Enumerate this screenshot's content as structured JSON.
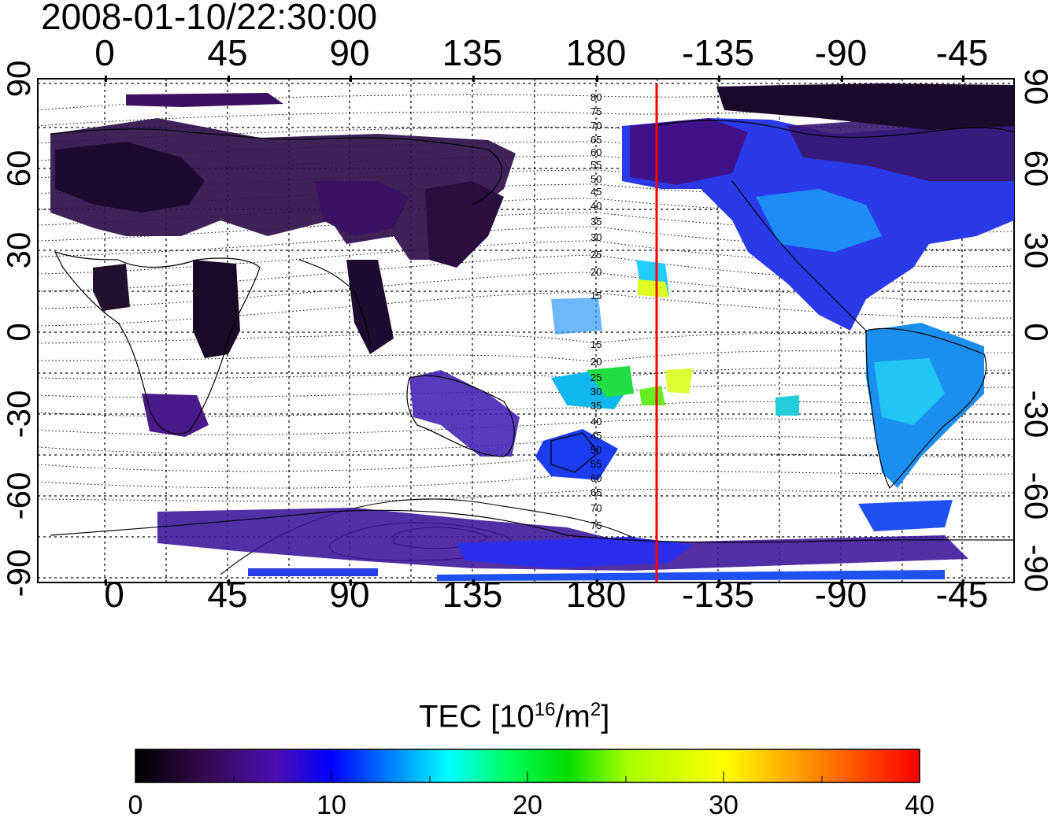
{
  "map": {
    "timestamp": "2008-01-10/22:30:00",
    "top_axis_ticks": [
      "0",
      "45",
      "90",
      "135",
      "180",
      "-135",
      "-90",
      "-45"
    ],
    "bottom_axis_ticks": [
      "0",
      "45",
      "90",
      "135",
      "180",
      "-135",
      "-90",
      "-45"
    ],
    "left_axis_ticks": [
      "90",
      "60",
      "30",
      "0",
      "-30",
      "-60",
      "-90"
    ],
    "right_axis_ticks": [
      "90",
      "60",
      "30",
      "0",
      "-30",
      "-60",
      "-90"
    ],
    "contour_labels_north": [
      "80",
      "75",
      "70",
      "65",
      "60",
      "55",
      "50",
      "45",
      "40",
      "35",
      "30",
      "25",
      "20",
      "15"
    ],
    "contour_labels_south": [
      "15",
      "20",
      "25",
      "30",
      "35",
      "40",
      "45",
      "50",
      "55",
      "60",
      "65",
      "70",
      "75"
    ],
    "marker_line_color": "#ff0000",
    "colorbar": {
      "title": "TEC  [10",
      "title_sup": "16",
      "title_mid": "/m",
      "title_sup2": "2",
      "title_end": "]",
      "ticks": [
        "0",
        "10",
        "20",
        "30",
        "40"
      ],
      "range": [
        0,
        40
      ],
      "colors": [
        "#000000",
        "#3a0a5a",
        "#4b0fb4",
        "#0000ff",
        "#00aaff",
        "#00ffff",
        "#00ff66",
        "#00dd00",
        "#aaff00",
        "#ffff00",
        "#ff9900",
        "#ff0000"
      ]
    }
  }
}
